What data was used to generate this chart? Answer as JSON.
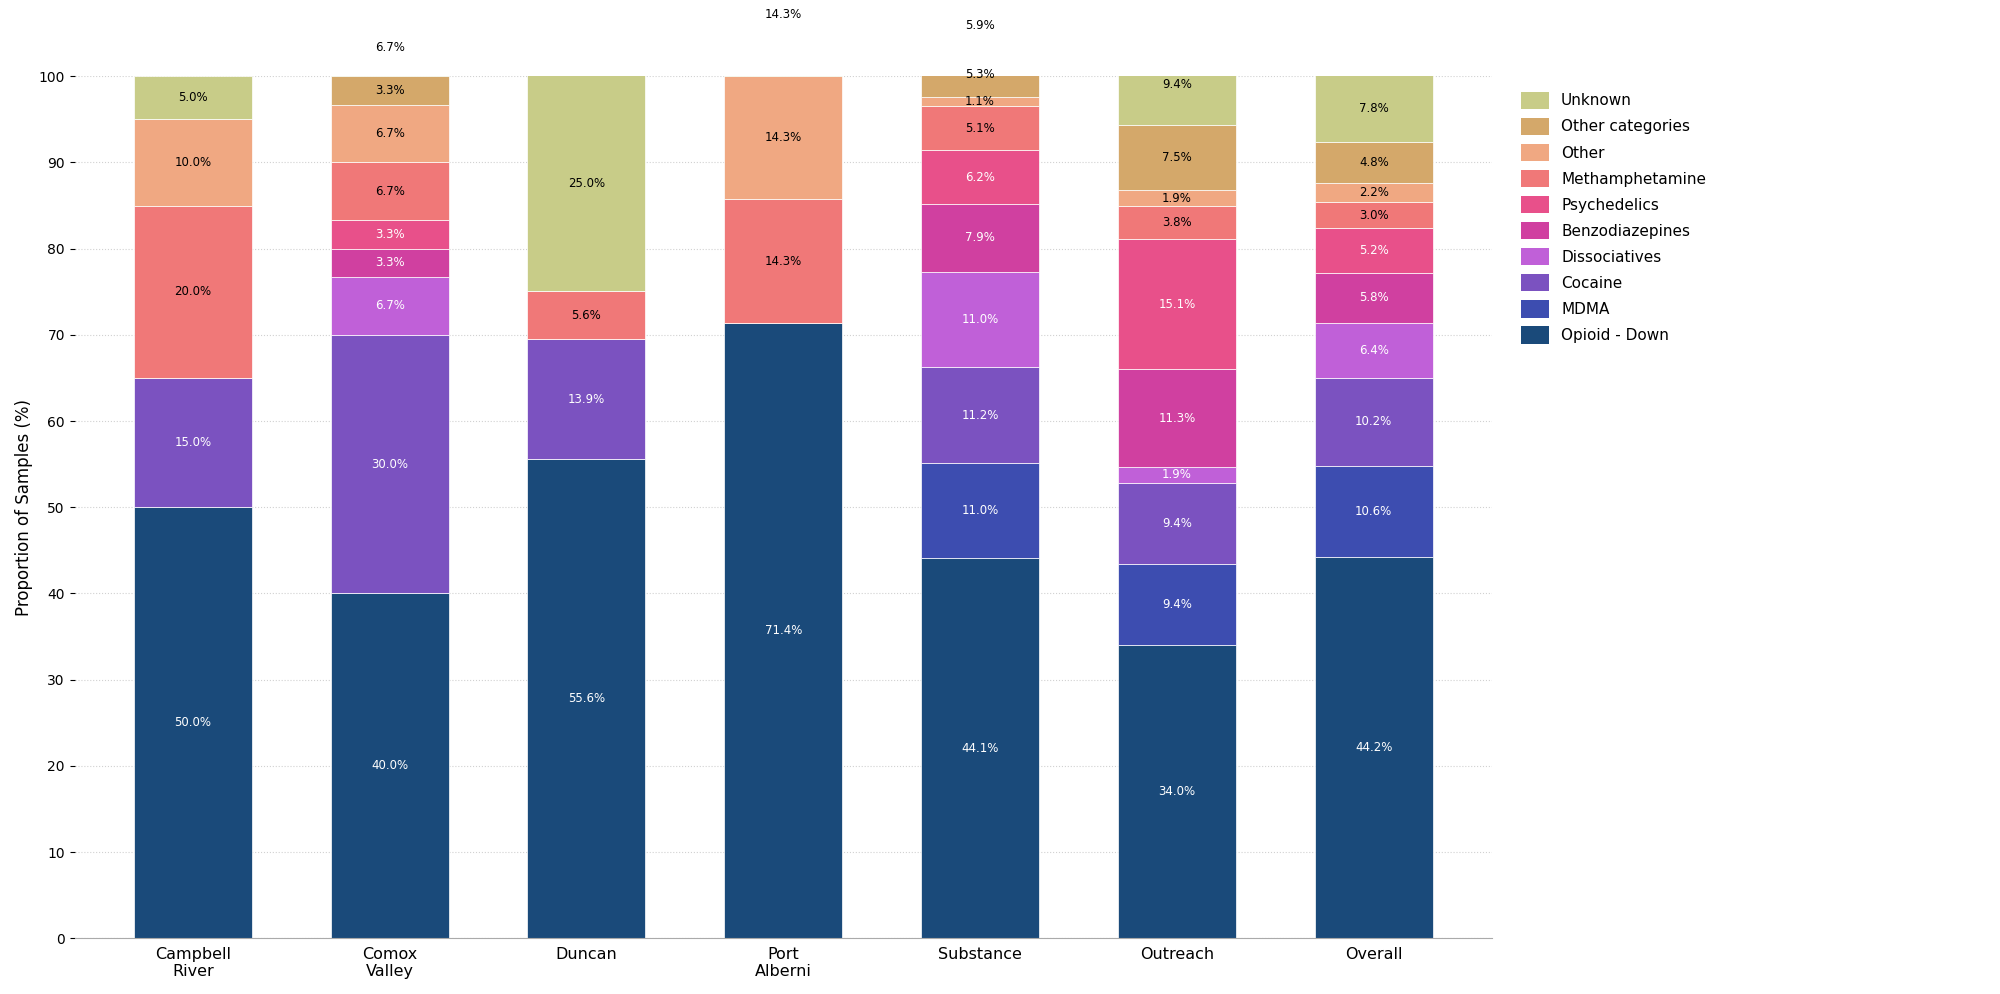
{
  "categories": [
    "Campbell\nRiver",
    "Comox\nValley",
    "Duncan",
    "Port\nAlberni",
    "Substance",
    "Outreach",
    "Overall"
  ],
  "drug_classes": [
    "Opioid - Down",
    "MDMA",
    "Cocaine",
    "Dissociatives",
    "Benzodiazepines",
    "Psychedelics",
    "Methamphetamine",
    "Other",
    "Other categories",
    "Unknown"
  ],
  "colors": [
    "#1a4a7a",
    "#3d4db0",
    "#7b52c0",
    "#c060d8",
    "#d040a0",
    "#e8508a",
    "#f07878",
    "#f0a882",
    "#d4a86a",
    "#c8cc88"
  ],
  "values": {
    "Opioid - Down": [
      50.0,
      40.0,
      55.6,
      71.4,
      44.1,
      34.0,
      44.2
    ],
    "MDMA": [
      0.0,
      0.0,
      0.0,
      0.0,
      11.0,
      9.4,
      10.6
    ],
    "Cocaine": [
      15.0,
      30.0,
      13.9,
      0.0,
      11.2,
      9.4,
      10.2
    ],
    "Dissociatives": [
      0.0,
      6.7,
      0.0,
      0.0,
      11.0,
      1.9,
      6.4
    ],
    "Benzodiazepines": [
      0.0,
      3.3,
      0.0,
      0.0,
      7.9,
      11.3,
      5.8
    ],
    "Psychedelics": [
      0.0,
      3.3,
      0.0,
      0.0,
      6.2,
      15.1,
      5.2
    ],
    "Methamphetamine": [
      20.0,
      6.7,
      5.6,
      14.3,
      5.1,
      3.8,
      3.0
    ],
    "Other": [
      10.0,
      6.7,
      0.0,
      14.3,
      1.1,
      1.9,
      2.2
    ],
    "Other categories": [
      0.0,
      3.3,
      0.0,
      0.0,
      5.3,
      7.5,
      4.8
    ],
    "Unknown": [
      5.0,
      6.7,
      25.0,
      14.3,
      5.9,
      9.4,
      7.8
    ]
  },
  "text_colors": {
    "Opioid - Down": "white",
    "MDMA": "white",
    "Cocaine": "white",
    "Dissociatives": "white",
    "Benzodiazepines": "white",
    "Psychedelics": "white",
    "Methamphetamine": "black",
    "Other": "black",
    "Other categories": "black",
    "Unknown": "black"
  },
  "label_threshold": 1.0,
  "ylabel": "Proportion of Samples (%)",
  "ylim": [
    0,
    100
  ],
  "background_color": "#ffffff",
  "grid_color": "#cccccc",
  "figsize": [
    20.0,
    9.94
  ],
  "dpi": 100
}
